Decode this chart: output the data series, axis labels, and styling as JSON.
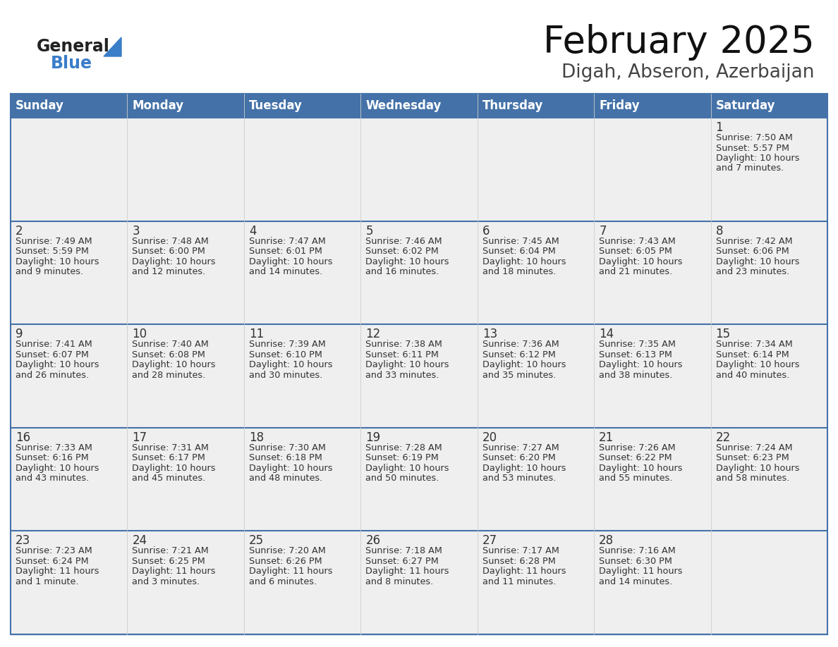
{
  "title": "February 2025",
  "subtitle": "Digah, Abseron, Azerbaijan",
  "days_of_week": [
    "Sunday",
    "Monday",
    "Tuesday",
    "Wednesday",
    "Thursday",
    "Friday",
    "Saturday"
  ],
  "header_bg": "#4472A8",
  "header_text": "#FFFFFF",
  "cell_bg_light": "#EFEFEF",
  "cell_bg_white": "#FFFFFF",
  "day_number_color": "#333333",
  "text_color": "#333333",
  "border_color": "#4472A8",
  "logo_black": "#222222",
  "logo_blue": "#3A7DC9",
  "calendar_data": [
    [
      null,
      null,
      null,
      null,
      null,
      null,
      {
        "day": 1,
        "sunrise": "7:50 AM",
        "sunset": "5:57 PM",
        "daylight": "10 hours and 7 minutes."
      }
    ],
    [
      {
        "day": 2,
        "sunrise": "7:49 AM",
        "sunset": "5:59 PM",
        "daylight": "10 hours and 9 minutes."
      },
      {
        "day": 3,
        "sunrise": "7:48 AM",
        "sunset": "6:00 PM",
        "daylight": "10 hours and 12 minutes."
      },
      {
        "day": 4,
        "sunrise": "7:47 AM",
        "sunset": "6:01 PM",
        "daylight": "10 hours and 14 minutes."
      },
      {
        "day": 5,
        "sunrise": "7:46 AM",
        "sunset": "6:02 PM",
        "daylight": "10 hours and 16 minutes."
      },
      {
        "day": 6,
        "sunrise": "7:45 AM",
        "sunset": "6:04 PM",
        "daylight": "10 hours and 18 minutes."
      },
      {
        "day": 7,
        "sunrise": "7:43 AM",
        "sunset": "6:05 PM",
        "daylight": "10 hours and 21 minutes."
      },
      {
        "day": 8,
        "sunrise": "7:42 AM",
        "sunset": "6:06 PM",
        "daylight": "10 hours and 23 minutes."
      }
    ],
    [
      {
        "day": 9,
        "sunrise": "7:41 AM",
        "sunset": "6:07 PM",
        "daylight": "10 hours and 26 minutes."
      },
      {
        "day": 10,
        "sunrise": "7:40 AM",
        "sunset": "6:08 PM",
        "daylight": "10 hours and 28 minutes."
      },
      {
        "day": 11,
        "sunrise": "7:39 AM",
        "sunset": "6:10 PM",
        "daylight": "10 hours and 30 minutes."
      },
      {
        "day": 12,
        "sunrise": "7:38 AM",
        "sunset": "6:11 PM",
        "daylight": "10 hours and 33 minutes."
      },
      {
        "day": 13,
        "sunrise": "7:36 AM",
        "sunset": "6:12 PM",
        "daylight": "10 hours and 35 minutes."
      },
      {
        "day": 14,
        "sunrise": "7:35 AM",
        "sunset": "6:13 PM",
        "daylight": "10 hours and 38 minutes."
      },
      {
        "day": 15,
        "sunrise": "7:34 AM",
        "sunset": "6:14 PM",
        "daylight": "10 hours and 40 minutes."
      }
    ],
    [
      {
        "day": 16,
        "sunrise": "7:33 AM",
        "sunset": "6:16 PM",
        "daylight": "10 hours and 43 minutes."
      },
      {
        "day": 17,
        "sunrise": "7:31 AM",
        "sunset": "6:17 PM",
        "daylight": "10 hours and 45 minutes."
      },
      {
        "day": 18,
        "sunrise": "7:30 AM",
        "sunset": "6:18 PM",
        "daylight": "10 hours and 48 minutes."
      },
      {
        "day": 19,
        "sunrise": "7:28 AM",
        "sunset": "6:19 PM",
        "daylight": "10 hours and 50 minutes."
      },
      {
        "day": 20,
        "sunrise": "7:27 AM",
        "sunset": "6:20 PM",
        "daylight": "10 hours and 53 minutes."
      },
      {
        "day": 21,
        "sunrise": "7:26 AM",
        "sunset": "6:22 PM",
        "daylight": "10 hours and 55 minutes."
      },
      {
        "day": 22,
        "sunrise": "7:24 AM",
        "sunset": "6:23 PM",
        "daylight": "10 hours and 58 minutes."
      }
    ],
    [
      {
        "day": 23,
        "sunrise": "7:23 AM",
        "sunset": "6:24 PM",
        "daylight": "11 hours and 1 minute."
      },
      {
        "day": 24,
        "sunrise": "7:21 AM",
        "sunset": "6:25 PM",
        "daylight": "11 hours and 3 minutes."
      },
      {
        "day": 25,
        "sunrise": "7:20 AM",
        "sunset": "6:26 PM",
        "daylight": "11 hours and 6 minutes."
      },
      {
        "day": 26,
        "sunrise": "7:18 AM",
        "sunset": "6:27 PM",
        "daylight": "11 hours and 8 minutes."
      },
      {
        "day": 27,
        "sunrise": "7:17 AM",
        "sunset": "6:28 PM",
        "daylight": "11 hours and 11 minutes."
      },
      {
        "day": 28,
        "sunrise": "7:16 AM",
        "sunset": "6:30 PM",
        "daylight": "11 hours and 14 minutes."
      },
      null
    ]
  ],
  "figsize": [
    11.88,
    9.18
  ],
  "dpi": 100
}
